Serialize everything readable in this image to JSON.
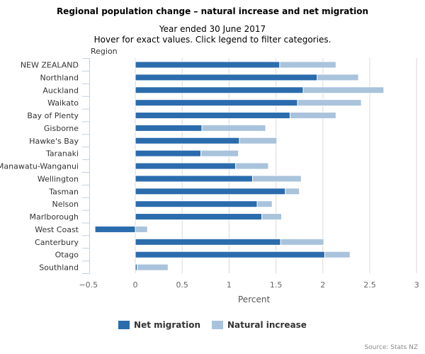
{
  "header": {
    "title": "Regional population change – natural increase and net migration",
    "subtitle_1": "Year ended 30 June 2017",
    "subtitle_2": "Hover for exact values. Click legend to filter categories."
  },
  "source": "Source: Stats NZ",
  "chart_data": {
    "type": "bar",
    "orientation": "horizontal",
    "stacked": true,
    "title": "Regional population change – natural increase and net migration",
    "ylabel": "Region",
    "xlabel": "Percent",
    "xlim": [
      -0.5,
      3
    ],
    "xticks": [
      "−0.5",
      "0",
      "0.5",
      "1",
      "1.5",
      "2",
      "2.5",
      "3"
    ],
    "xtick_values": [
      -0.5,
      0,
      0.5,
      1,
      1.5,
      2,
      2.5,
      3
    ],
    "grid": true,
    "legend_position": "bottom",
    "categories": [
      "NEW ZEALAND",
      "Northland",
      "Auckland",
      "Waikato",
      "Bay of Plenty",
      "Gisborne",
      "Hawke's Bay",
      "Taranaki",
      "Manawatu-Wanganui",
      "Wellington",
      "Tasman",
      "Nelson",
      "Marlborough",
      "West Coast",
      "Canterbury",
      "Otago",
      "Southland"
    ],
    "series": [
      {
        "name": "Net migration",
        "color": "#2b6cad",
        "values": [
          1.54,
          1.94,
          1.79,
          1.73,
          1.65,
          0.71,
          1.11,
          0.7,
          1.07,
          1.25,
          1.6,
          1.3,
          1.35,
          -0.43,
          1.55,
          2.02,
          0.02
        ]
      },
      {
        "name": "Natural increase",
        "color": "#a9c3dc",
        "values": [
          0.6,
          0.44,
          0.86,
          0.68,
          0.49,
          0.68,
          0.4,
          0.4,
          0.35,
          0.52,
          0.15,
          0.16,
          0.21,
          0.13,
          0.46,
          0.27,
          0.33
        ]
      }
    ]
  }
}
